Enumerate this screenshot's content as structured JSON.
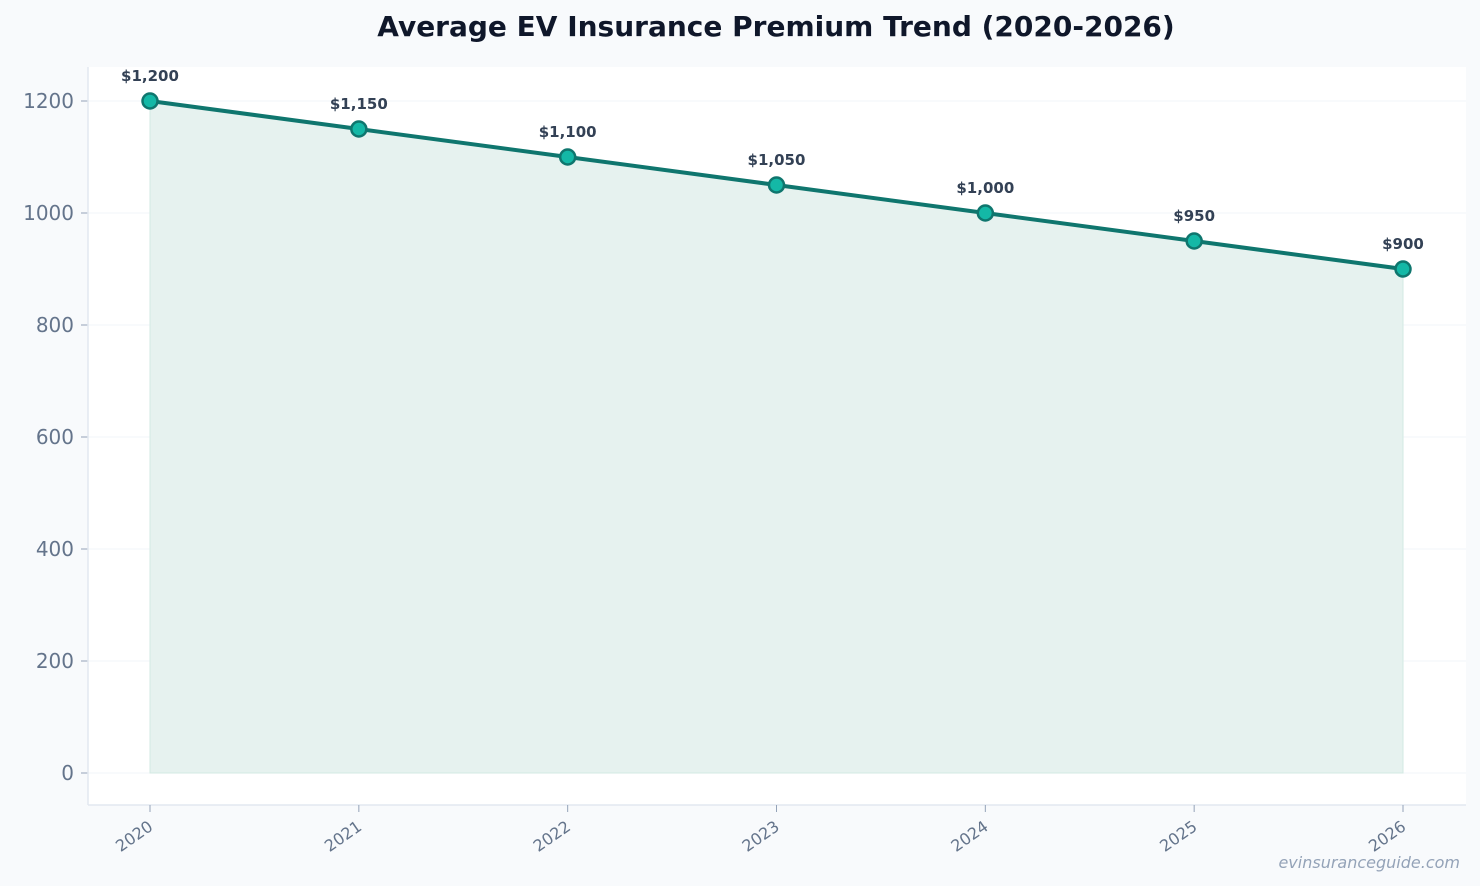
{
  "chart_data": {
    "type": "area",
    "title": "Average EV Insurance Premium Trend (2020-2026)",
    "xlabel": "",
    "ylabel": "",
    "categories": [
      "2020",
      "2021",
      "2022",
      "2023",
      "2024",
      "2025",
      "2026"
    ],
    "series": [
      {
        "values": [
          1200,
          1150,
          1100,
          1050,
          1000,
          950,
          900
        ],
        "labels": [
          "$1,200",
          "$1,150",
          "$1,100",
          "$1,050",
          "$1,000",
          "$950",
          "$900"
        ]
      }
    ],
    "yticks": [
      "0",
      "200",
      "400",
      "600",
      "800",
      "1000",
      "1200"
    ],
    "ylim": [
      0,
      1200
    ],
    "grid": true,
    "legend": "none",
    "colors": {
      "line": "#0f766e",
      "marker_fill": "#14b8a6",
      "area_fill": "#e6f2ef"
    }
  },
  "watermark": "evinsuranceguide.com"
}
